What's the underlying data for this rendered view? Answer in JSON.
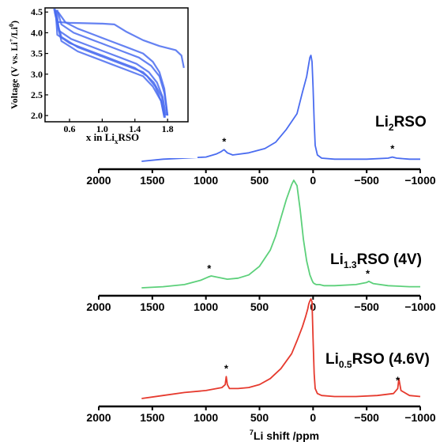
{
  "chart_data": {
    "type": "line",
    "xlabel": "7Li shift /ppm",
    "xlabel_sup": "7",
    "xlabel_main": "Li shift /ppm",
    "xlim": [
      2000,
      -1000
    ],
    "x_reversed": true,
    "x_ticks": [
      2000,
      1500,
      1000,
      500,
      0,
      -500,
      -1000
    ],
    "x_tick_labels": [
      "2000",
      "1500",
      "1000",
      "500",
      "0",
      "−500",
      "−1000"
    ],
    "grid": false,
    "panels": [
      {
        "label": "Li2RSO",
        "label_parts": [
          "Li",
          "2",
          "RSO"
        ],
        "color": "#4a6cf0",
        "annotations": [
          "*",
          "*"
        ],
        "spinning_sidebands_ppm": [
          830,
          -740
        ],
        "x": [
          1600,
          1400,
          1200,
          1000,
          900,
          860,
          830,
          800,
          750,
          600,
          450,
          350,
          250,
          150,
          100,
          60,
          40,
          30,
          20,
          10,
          0,
          -10,
          -20,
          -40,
          -80,
          -200,
          -500,
          -700,
          -740,
          -780,
          -900,
          -1000
        ],
        "y": [
          0.0,
          0.02,
          0.03,
          0.04,
          0.07,
          0.09,
          0.11,
          0.08,
          0.06,
          0.08,
          0.12,
          0.18,
          0.3,
          0.45,
          0.65,
          0.8,
          0.92,
          0.98,
          1.0,
          0.94,
          0.7,
          0.38,
          0.15,
          0.06,
          0.03,
          0.02,
          0.02,
          0.03,
          0.04,
          0.03,
          0.02,
          0.02
        ]
      },
      {
        "label": "Li1.3RSO (4V)",
        "label_parts": [
          "Li",
          "1.3",
          "RSO (4V)"
        ],
        "color": "#5cd07a",
        "annotations": [
          "*",
          "*"
        ],
        "spinning_sidebands_ppm": [
          970,
          -510
        ],
        "x": [
          1600,
          1400,
          1200,
          1050,
          980,
          950,
          900,
          800,
          700,
          600,
          500,
          400,
          350,
          300,
          250,
          200,
          180,
          150,
          120,
          90,
          60,
          30,
          10,
          0,
          -10,
          -30,
          -60,
          -100,
          -200,
          -400,
          -500,
          -520,
          -560,
          -700,
          -900,
          -1000
        ],
        "y": [
          0.0,
          0.01,
          0.03,
          0.07,
          0.1,
          0.11,
          0.1,
          0.08,
          0.09,
          0.12,
          0.2,
          0.35,
          0.48,
          0.65,
          0.82,
          0.96,
          1.0,
          0.95,
          0.72,
          0.45,
          0.25,
          0.12,
          0.07,
          0.05,
          0.04,
          0.03,
          0.03,
          0.02,
          0.02,
          0.03,
          0.05,
          0.06,
          0.04,
          0.02,
          0.01,
          0.01
        ]
      },
      {
        "label": "Li0.5RSO (4.6V)",
        "label_parts": [
          "Li",
          "0.5",
          "RSO (4.6V)"
        ],
        "color": "#e63a2e",
        "annotations": [
          "*",
          "*"
        ],
        "spinning_sidebands_ppm": [
          810,
          -790
        ],
        "x": [
          1600,
          1400,
          1200,
          1000,
          850,
          820,
          810,
          800,
          780,
          700,
          600,
          500,
          400,
          300,
          200,
          150,
          100,
          70,
          50,
          40,
          30,
          20,
          10,
          0,
          -10,
          -20,
          -40,
          -80,
          -200,
          -400,
          -600,
          -750,
          -790,
          -800,
          -820,
          -900,
          -1000
        ],
        "y": [
          0.0,
          0.03,
          0.06,
          0.08,
          0.11,
          0.14,
          0.22,
          0.14,
          0.1,
          0.1,
          0.11,
          0.14,
          0.2,
          0.3,
          0.45,
          0.58,
          0.72,
          0.82,
          0.9,
          0.95,
          0.98,
          1.0,
          0.97,
          0.6,
          0.25,
          0.1,
          0.05,
          0.03,
          0.02,
          0.02,
          0.03,
          0.05,
          0.1,
          0.2,
          0.08,
          0.03,
          0.02
        ]
      }
    ],
    "inset": {
      "type": "line",
      "xlabel": "x in LixRSO",
      "xlabel_parts": [
        "x in Li",
        "x",
        "RSO"
      ],
      "ylabel": "Voltage (V vs. Li+/Li0)",
      "ylabel_parts": [
        "Voltage (V vs. Li",
        "+",
        "/Li",
        "0",
        ")"
      ],
      "xlim": [
        0.3,
        2.05
      ],
      "ylim": [
        1.85,
        4.6
      ],
      "x_ticks": [
        0.6,
        1.0,
        1.4,
        1.8
      ],
      "y_ticks": [
        2.0,
        2.5,
        3.0,
        3.5,
        4.0,
        4.5
      ],
      "color": "#4a6cf0",
      "series": [
        {
          "x": [
            2.0,
            1.97,
            1.9,
            1.7,
            1.5,
            1.3,
            1.15,
            1.0,
            0.8,
            0.6,
            0.45,
            0.42
          ],
          "y": [
            3.15,
            3.45,
            3.58,
            3.68,
            3.82,
            4.02,
            4.2,
            4.22,
            4.23,
            4.24,
            4.26,
            4.5
          ]
        },
        {
          "x": [
            0.43,
            0.45,
            0.6,
            0.8,
            1.0,
            1.2,
            1.4,
            1.55,
            1.65,
            1.72,
            1.76
          ],
          "y": [
            4.55,
            3.95,
            3.75,
            3.6,
            3.45,
            3.3,
            3.15,
            2.95,
            2.7,
            2.35,
            2.0
          ]
        },
        {
          "x": [
            0.44,
            0.47,
            0.62,
            0.82,
            1.02,
            1.22,
            1.42,
            1.57,
            1.67,
            1.74,
            1.78
          ],
          "y": [
            4.55,
            4.05,
            3.85,
            3.7,
            3.55,
            3.4,
            3.25,
            3.05,
            2.8,
            2.45,
            2.0
          ]
        },
        {
          "x": [
            0.45,
            0.5,
            0.65,
            0.85,
            1.05,
            1.25,
            1.45,
            1.6,
            1.7,
            1.76,
            1.8
          ],
          "y": [
            4.55,
            4.2,
            4.0,
            3.85,
            3.7,
            3.55,
            3.4,
            3.2,
            2.95,
            2.55,
            2.0
          ]
        },
        {
          "x": [
            0.42,
            0.44,
            0.5,
            0.7,
            0.9,
            1.1,
            1.3,
            1.5,
            1.62,
            1.72,
            1.76
          ],
          "y": [
            4.58,
            4.3,
            3.8,
            3.55,
            3.4,
            3.25,
            3.1,
            2.95,
            2.7,
            2.35,
            1.95
          ]
        },
        {
          "x": [
            0.41,
            0.43,
            0.5,
            0.7,
            0.9,
            1.1,
            1.3,
            1.5,
            1.63,
            1.73,
            1.77
          ],
          "y": [
            4.58,
            4.4,
            3.9,
            3.65,
            3.5,
            3.35,
            3.2,
            3.05,
            2.8,
            2.45,
            1.95
          ]
        },
        {
          "x": [
            0.46,
            0.55,
            0.7,
            0.9,
            1.1,
            1.3,
            1.5,
            1.62,
            1.7,
            1.76,
            1.8
          ],
          "y": [
            4.5,
            4.25,
            4.1,
            3.95,
            3.8,
            3.65,
            3.5,
            3.3,
            3.05,
            2.65,
            2.0
          ]
        }
      ]
    }
  }
}
